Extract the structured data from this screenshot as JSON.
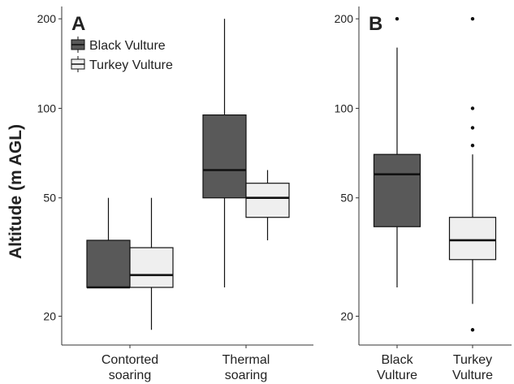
{
  "ylabel": "Altitude (m AGL)",
  "colors": {
    "black_vulture": "#595959",
    "turkey_vulture": "#efefef",
    "stroke": "#111111"
  },
  "chart_data": [
    {
      "panel": "A",
      "type": "box",
      "scale": "log",
      "ylim": [
        16,
        220
      ],
      "yticks": [
        20,
        50,
        100,
        200
      ],
      "ytick_labels": [
        "20",
        "50",
        "100",
        "200"
      ],
      "categories": [
        "Contorted\nsoaring",
        "Thermal\nsoaring"
      ],
      "legend": {
        "placement": "top-left",
        "entries": [
          "Black Vulture",
          "Turkey Vulture"
        ]
      },
      "series": [
        {
          "name": "Black Vulture",
          "color": "#595959",
          "boxes": [
            {
              "min": 25,
              "q1": 25,
              "median": 25,
              "q3": 36,
              "max": 50,
              "outliers": []
            },
            {
              "min": 25,
              "q1": 50,
              "median": 62,
              "q3": 95,
              "max": 200,
              "outliers": []
            }
          ]
        },
        {
          "name": "Turkey Vulture",
          "color": "#efefef",
          "boxes": [
            {
              "min": 18,
              "q1": 25,
              "median": 27.5,
              "q3": 34,
              "max": 50,
              "outliers": []
            },
            {
              "min": 36,
              "q1": 43,
              "median": 50,
              "q3": 56,
              "max": 62,
              "outliers": []
            }
          ]
        }
      ]
    },
    {
      "panel": "B",
      "type": "box",
      "scale": "log",
      "ylim": [
        16,
        220
      ],
      "yticks": [
        20,
        50,
        100,
        200
      ],
      "ytick_labels": [
        "20",
        "50",
        "100",
        "200"
      ],
      "categories": [
        "Black\nVulture",
        "Turkey\nVulture"
      ],
      "boxes": [
        {
          "name": "Black Vulture",
          "color": "#595959",
          "min": 25,
          "q1": 40,
          "median": 60,
          "q3": 70,
          "max": 160,
          "outliers": [
            200
          ]
        },
        {
          "name": "Turkey Vulture",
          "color": "#efefef",
          "min": 22,
          "q1": 31,
          "median": 36,
          "q3": 43,
          "max": 70,
          "outliers": [
            18,
            75,
            86,
            100,
            200
          ]
        }
      ]
    }
  ]
}
